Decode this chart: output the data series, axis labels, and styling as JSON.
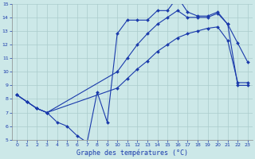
{
  "title": "Graphe des températures (°C)",
  "background_color": "#cce8e8",
  "line_color": "#1a3aab",
  "grid_color": "#aacccc",
  "xlim": [
    -0.5,
    23.5
  ],
  "ylim": [
    5,
    15
  ],
  "xticks": [
    0,
    1,
    2,
    3,
    4,
    5,
    6,
    7,
    8,
    9,
    10,
    11,
    12,
    13,
    14,
    15,
    16,
    17,
    18,
    19,
    20,
    21,
    22,
    23
  ],
  "yticks": [
    5,
    6,
    7,
    8,
    9,
    10,
    11,
    12,
    13,
    14,
    15
  ],
  "series": [
    {
      "x": [
        0,
        1,
        2,
        3,
        4,
        5,
        6,
        7,
        8,
        9,
        10,
        11,
        12,
        13,
        14,
        15,
        16,
        17,
        18,
        19,
        20,
        21,
        22,
        23
      ],
      "y": [
        8.3,
        7.8,
        7.3,
        7.0,
        6.3,
        6.0,
        5.3,
        4.8,
        8.5,
        6.3,
        12.8,
        13.8,
        13.8,
        13.8,
        14.5,
        14.5,
        15.5,
        14.4,
        14.1,
        14.1,
        14.4,
        13.5,
        12.1,
        10.7
      ]
    },
    {
      "x": [
        0,
        1,
        2,
        3,
        10,
        11,
        12,
        13,
        14,
        15,
        16,
        17,
        18,
        19,
        20,
        21,
        22,
        23
      ],
      "y": [
        8.3,
        7.8,
        7.3,
        7.0,
        10.0,
        11.0,
        12.0,
        12.8,
        13.5,
        14.0,
        14.5,
        14.0,
        14.0,
        14.0,
        14.3,
        13.5,
        9.0,
        9.0
      ]
    },
    {
      "x": [
        0,
        1,
        2,
        3,
        10,
        11,
        12,
        13,
        14,
        15,
        16,
        17,
        18,
        19,
        20,
        21,
        22,
        23
      ],
      "y": [
        8.3,
        7.8,
        7.3,
        7.0,
        8.8,
        9.5,
        10.2,
        10.8,
        11.5,
        12.0,
        12.5,
        12.8,
        13.0,
        13.2,
        13.3,
        12.3,
        9.2,
        9.2
      ]
    }
  ]
}
